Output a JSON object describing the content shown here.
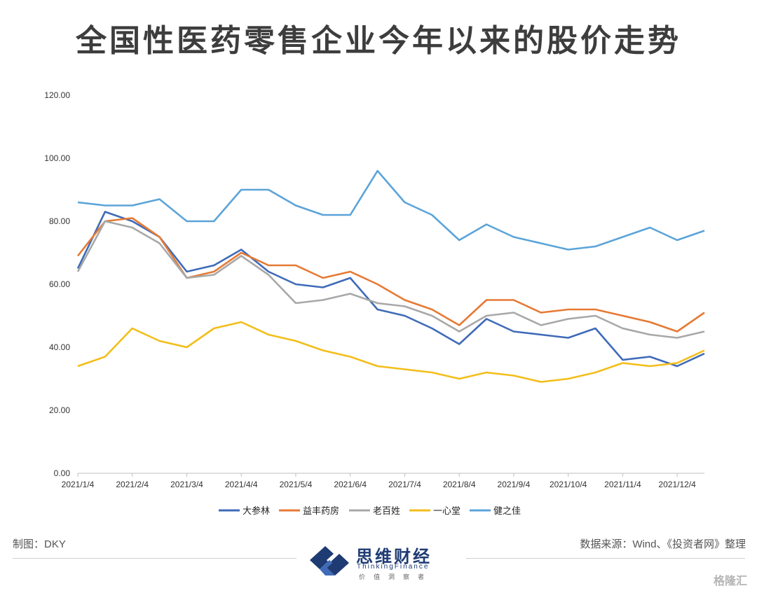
{
  "chart_data": {
    "type": "line",
    "title": "全国性医药零售企业今年以来的股价走势",
    "xlabel": "",
    "ylabel": "",
    "ylim": [
      0,
      120
    ],
    "yticks": [
      "0.00",
      "20.00",
      "40.00",
      "60.00",
      "80.00",
      "100.00",
      "120.00"
    ],
    "xticks": [
      "2021/1/4",
      "2021/2/4",
      "2021/3/4",
      "2021/4/4",
      "2021/5/4",
      "2021/6/4",
      "2021/7/4",
      "2021/8/4",
      "2021/9/4",
      "2021/10/4",
      "2021/11/4",
      "2021/12/4"
    ],
    "grid": false,
    "legend": "bottom",
    "x": [
      "2021/1/4",
      "2021/1/19",
      "2021/2/4",
      "2021/2/19",
      "2021/3/4",
      "2021/3/19",
      "2021/4/4",
      "2021/4/19",
      "2021/5/4",
      "2021/5/19",
      "2021/6/4",
      "2021/6/19",
      "2021/7/4",
      "2021/7/19",
      "2021/8/4",
      "2021/8/19",
      "2021/9/4",
      "2021/9/19",
      "2021/10/4",
      "2021/10/19",
      "2021/11/4",
      "2021/11/19",
      "2021/12/4",
      "2021/12/10"
    ],
    "series": [
      {
        "name": "大参林",
        "color": "#3f6bb8",
        "values": [
          65,
          83,
          80,
          75,
          64,
          66,
          71,
          64,
          60,
          59,
          62,
          52,
          50,
          46,
          41,
          49,
          45,
          44,
          43,
          46,
          36,
          37,
          34,
          38
        ]
      },
      {
        "name": "益丰药房",
        "color": "#e67a35",
        "values": [
          69,
          80,
          81,
          75,
          62,
          64,
          70,
          66,
          66,
          62,
          64,
          60,
          55,
          52,
          47,
          55,
          55,
          51,
          52,
          52,
          50,
          48,
          45,
          51
        ]
      },
      {
        "name": "老百姓",
        "color": "#a8a8a8",
        "values": [
          64,
          80,
          78,
          73,
          62,
          63,
          69,
          63,
          54,
          55,
          57,
          54,
          53,
          50,
          45,
          50,
          51,
          47,
          49,
          50,
          46,
          44,
          43,
          45
        ]
      },
      {
        "name": "一心堂",
        "color": "#f3be1a",
        "values": [
          34,
          37,
          46,
          42,
          40,
          46,
          48,
          44,
          42,
          39,
          37,
          34,
          33,
          32,
          30,
          32,
          31,
          29,
          30,
          32,
          35,
          34,
          35,
          39
        ]
      },
      {
        "name": "健之佳",
        "color": "#5ba4d9",
        "values": [
          86,
          85,
          85,
          87,
          80,
          80,
          90,
          90,
          85,
          82,
          82,
          96,
          86,
          82,
          74,
          79,
          75,
          73,
          71,
          72,
          75,
          78,
          74,
          77
        ]
      }
    ]
  },
  "footer": {
    "made_by": "制图：DKY",
    "source": "数据来源：Wind、《投资者网》整理"
  },
  "logo": {
    "name": "思维财经",
    "sub": "ThinkingFinance",
    "motto": "价值洞察者"
  },
  "watermark": "格隆汇"
}
